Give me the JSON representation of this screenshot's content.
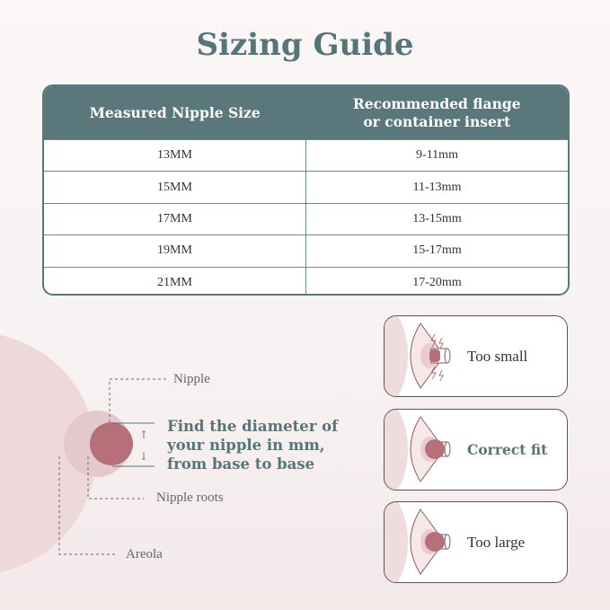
{
  "title": "Sizing Guide",
  "table": {
    "headers": [
      "Measured Nipple Size",
      "Recommended flange\nor container insert"
    ],
    "rows": [
      [
        "13MM",
        "9-11mm"
      ],
      [
        "15MM",
        "11-13mm"
      ],
      [
        "17MM",
        "13-15mm"
      ],
      [
        "19MM",
        "15-17mm"
      ],
      [
        "21MM",
        "17-20mm"
      ]
    ]
  },
  "diagram": {
    "nipple_label": "Nipple",
    "roots_label": "Nipple roots",
    "areola_label": "Areola",
    "instruction": [
      "Find the diameter of",
      "your nipple in mm,",
      "from base to base"
    ]
  },
  "fit_cards": [
    {
      "label": "Too small",
      "emphasis": false,
      "icon": "flange-too-small-icon"
    },
    {
      "label": "Correct fit",
      "emphasis": true,
      "icon": "flange-correct-fit-icon"
    },
    {
      "label": "Too large",
      "emphasis": false,
      "icon": "flange-too-large-icon"
    }
  ],
  "colors": {
    "teal": "#5a787b",
    "nipple": "#b5707a",
    "skin": "#edd9da",
    "areola": "#e4c8cb"
  }
}
